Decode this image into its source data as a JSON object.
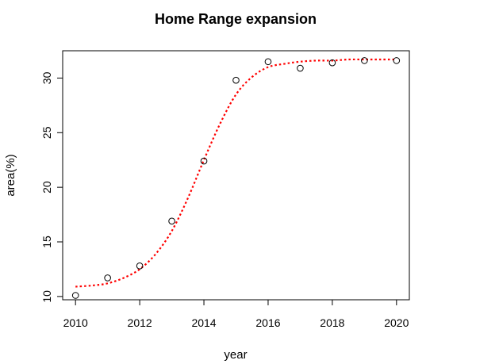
{
  "chart_data": {
    "type": "scatter",
    "title": "Home Range expansion",
    "xlabel": "year",
    "ylabel": "area(%)",
    "xlim": [
      2009.6,
      2020.4
    ],
    "ylim": [
      9.7,
      32.5
    ],
    "grid": false,
    "x_ticks": [
      "2010",
      "2012",
      "2014",
      "2016",
      "2018",
      "2020"
    ],
    "y_ticks": [
      "10",
      "15",
      "20",
      "25",
      "30"
    ],
    "series": [
      {
        "style": "open-circle",
        "color": "#000000",
        "x": [
          2010,
          2011,
          2012,
          2013,
          2014,
          2015,
          2016,
          2017,
          2018,
          2019,
          2020
        ],
        "y": [
          10.1,
          11.7,
          12.8,
          16.9,
          22.4,
          29.8,
          31.5,
          30.9,
          31.4,
          31.6,
          31.6
        ]
      },
      {
        "style": "dotted-line",
        "color": "#ff0000",
        "x": [
          2010,
          2010.5,
          2011,
          2011.5,
          2012,
          2012.5,
          2013,
          2013.5,
          2014,
          2014.5,
          2015,
          2015.5,
          2016,
          2016.5,
          2017,
          2017.5,
          2018,
          2018.5,
          2019,
          2019.5,
          2020
        ],
        "y": [
          10.9,
          11.0,
          11.2,
          11.7,
          12.5,
          13.9,
          16.0,
          19.0,
          22.5,
          25.8,
          28.5,
          30.1,
          31.0,
          31.3,
          31.5,
          31.6,
          31.6,
          31.7,
          31.7,
          31.7,
          31.7
        ]
      }
    ]
  }
}
